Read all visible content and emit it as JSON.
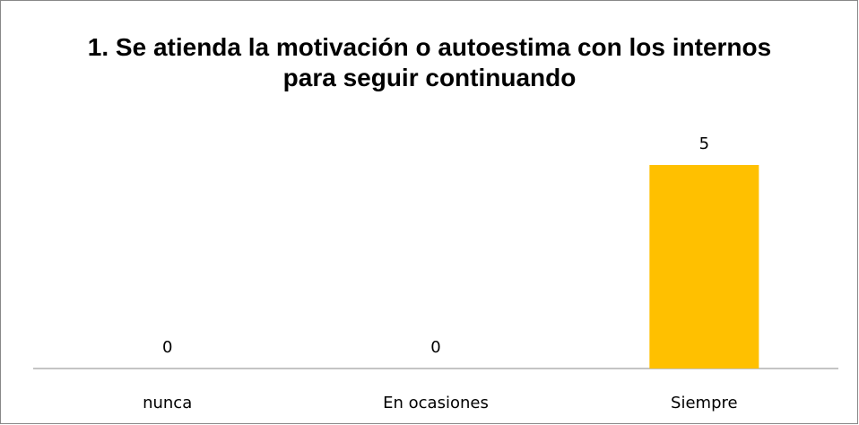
{
  "chart_data": {
    "type": "bar",
    "title": "1. Se atienda la motivación o autoestima  con los internos para seguir continuando",
    "categories": [
      "nunca",
      "En ocasiones",
      "Siempre"
    ],
    "values": [
      0,
      0,
      5
    ],
    "color": "#ffc000"
  }
}
